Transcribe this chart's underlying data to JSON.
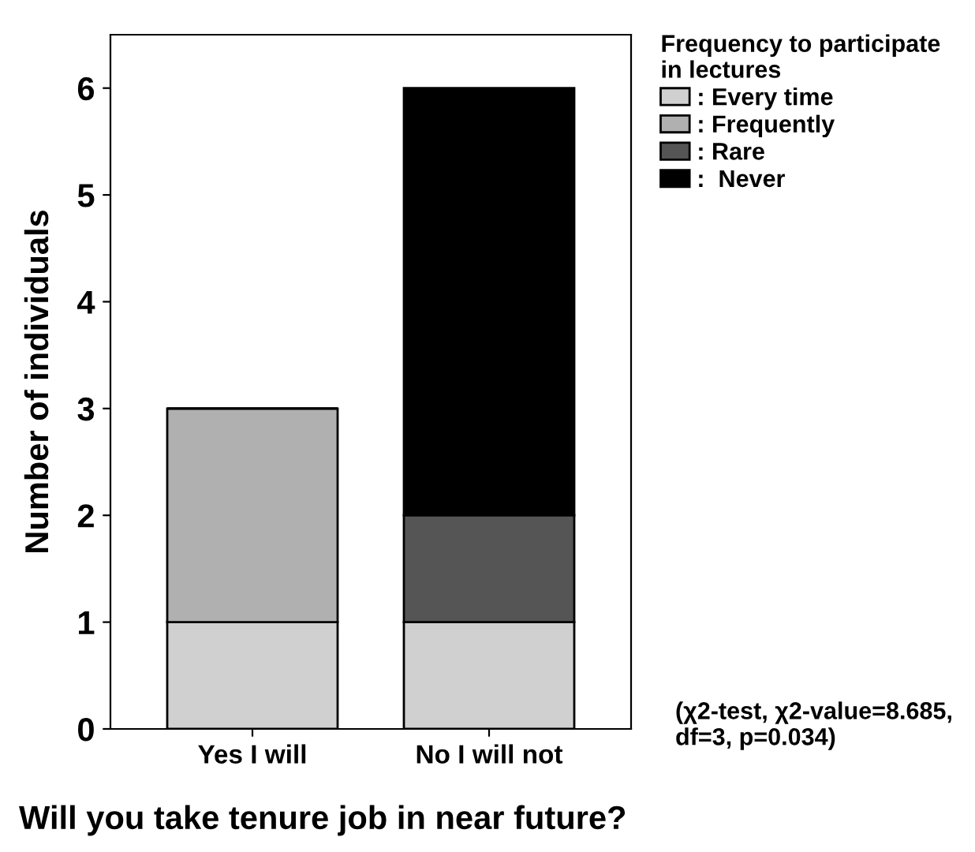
{
  "chart_data": {
    "type": "bar",
    "stacked": true,
    "xlabel": "Will you take tenure job in near future?",
    "ylabel": "Number of individuals",
    "legend_title": "Frequency to participate\nin lectures",
    "categories": [
      "Yes I will",
      "No I will not"
    ],
    "series": [
      {
        "name": ": Every time",
        "color": "#d0d0d0",
        "values": [
          1,
          1
        ]
      },
      {
        "name": ": Frequently",
        "color": "#b0b0b0",
        "values": [
          2,
          0
        ]
      },
      {
        "name": ": Rare",
        "color": "#555555",
        "values": [
          0,
          1
        ]
      },
      {
        "name": ":  Never",
        "color": "#000000",
        "values": [
          0,
          4
        ]
      }
    ],
    "ylim": [
      0,
      6.5
    ],
    "yticks": [
      0,
      1,
      2,
      3,
      4,
      5,
      6
    ],
    "grid": false,
    "legend": "top right",
    "annotations": [
      "(χ2-test, χ2-value=8.685,\ndf=3, p=0.034)"
    ]
  }
}
